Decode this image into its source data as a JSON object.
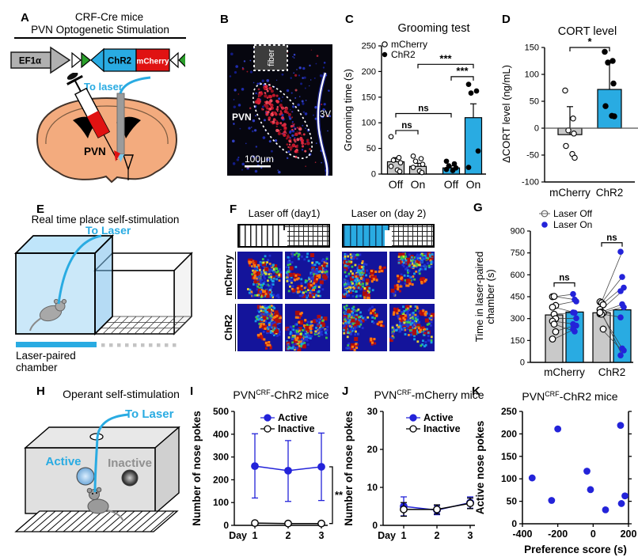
{
  "colors": {
    "cyan": "#29ABE2",
    "blue": "#2323D9",
    "bar_gray": "#C9C9C9",
    "red": "#E01212",
    "green": "#2BA02B",
    "heat_navy": "#14149B"
  },
  "panels": {
    "A": {
      "label": "A",
      "title1": "CRF-Cre mice",
      "title2": "PVN Optogenetic Stimulation",
      "promoter": "EF1α",
      "gene": "ChR2",
      "reporter": "mCherry",
      "to_laser": "To laser",
      "region": "PVN"
    },
    "B": {
      "label": "B",
      "fiber": "fiber",
      "region": "PVN",
      "ventricle": "3V",
      "scalebar": "100μm"
    },
    "C": {
      "label": "C"
    },
    "D": {
      "label": "D"
    },
    "E": {
      "label": "E",
      "title": "Real time place self-stimulation",
      "to_laser": "To  Laser",
      "chamber1": "Laser-paired",
      "chamber2": "chamber"
    },
    "F": {
      "label": "F",
      "col1": "Laser off (day1)",
      "col2": "Laser on (day 2)",
      "row1": "mCherry",
      "row2": "ChR2"
    },
    "G": {
      "label": "G"
    },
    "H": {
      "label": "H",
      "title": "Operant self-stimulation",
      "to_laser": "To  Laser",
      "active": "Active",
      "inactive": "Inactive"
    },
    "I": {
      "label": "I"
    },
    "J": {
      "label": "J"
    },
    "K": {
      "label": "K"
    }
  },
  "chart_data": [
    {
      "panel": "C",
      "type": "bar",
      "title": "Grooming test",
      "ylabel": "Grooming time (s)",
      "ylim": [
        0,
        250
      ],
      "yticks": [
        0,
        50,
        100,
        150,
        200,
        250
      ],
      "xticklabels": [
        "Off",
        "On",
        "Off",
        "On"
      ],
      "legend": [
        {
          "label": "mCherry",
          "marker": "open"
        },
        {
          "label": "ChR2",
          "marker": "filled"
        }
      ],
      "bars": [
        {
          "group": "mCherry",
          "x": "Off",
          "value": 24,
          "err": 8,
          "fill": "gray",
          "marker": "open",
          "points": [
            73,
            32,
            27,
            22,
            15,
            8,
            5
          ]
        },
        {
          "group": "mCherry",
          "x": "On",
          "value": 15,
          "err": 6,
          "fill": "gray",
          "marker": "open",
          "points": [
            35,
            30,
            25,
            19,
            13,
            6,
            3
          ]
        },
        {
          "group": "ChR2",
          "x": "Off",
          "value": 12,
          "err": 4,
          "fill": "cyan",
          "marker": "filled",
          "points": [
            25,
            20,
            16,
            12,
            9,
            7
          ]
        },
        {
          "group": "ChR2",
          "x": "On",
          "value": 110,
          "err": 27,
          "fill": "cyan",
          "marker": "filled",
          "points": [
            175,
            162,
            158,
            45,
            13
          ]
        }
      ],
      "brackets": [
        {
          "a": 0,
          "b": 1,
          "y": 85,
          "label": "ns"
        },
        {
          "a": 0,
          "b": 2,
          "y": 118,
          "label": "ns"
        },
        {
          "a": 2,
          "b": 3,
          "y": 190,
          "label": "***"
        },
        {
          "a": 1,
          "b": 3,
          "y": 214,
          "label": "***"
        }
      ]
    },
    {
      "panel": "D",
      "type": "bar",
      "title": "CORT level",
      "ylabel": "ΔCORT level (ng/mL)",
      "ylim": [
        -100,
        150
      ],
      "yticks": [
        -100,
        -50,
        0,
        50,
        100,
        150
      ],
      "xticklabels": [
        "mCherry",
        "ChR2"
      ],
      "bars": [
        {
          "group": "mCherry",
          "value": -12,
          "err_top": 40,
          "fill": "gray",
          "marker": "open",
          "points": [
            70,
            18,
            -4,
            -10,
            -33,
            -48,
            -55
          ]
        },
        {
          "group": "ChR2",
          "value": 72,
          "err_top": 125,
          "fill": "cyan",
          "marker": "filled",
          "points": [
            142,
            125,
            122,
            83,
            41,
            23,
            22
          ]
        }
      ],
      "brackets": [
        {
          "a": 0,
          "b": 1,
          "y": 150,
          "label": "*"
        }
      ]
    },
    {
      "panel": "G",
      "type": "paired-bar",
      "ylabel_line1": "Time in laser-paired",
      "ylabel_line2": "chamber (s)",
      "ylim": [
        0,
        900
      ],
      "yticks": [
        0,
        150,
        300,
        450,
        600,
        750,
        900
      ],
      "legend": [
        {
          "label": "Laser Off",
          "marker": "open"
        },
        {
          "label": "Laser On",
          "marker": "filled-blue"
        }
      ],
      "groups": [
        {
          "label": "mCherry",
          "off_mean": 325,
          "on_mean": 345,
          "pairs": [
            [
              450,
              468
            ],
            [
              452,
              430
            ],
            [
              390,
              418
            ],
            [
              378,
              342
            ],
            [
              330,
              340
            ],
            [
              300,
              302
            ],
            [
              282,
              262
            ],
            [
              262,
              212
            ],
            [
              210,
              252
            ],
            [
              160,
              228
            ]
          ]
        },
        {
          "label": "ChR2",
          "off_mean": 340,
          "on_mean": 360,
          "pairs": [
            [
              415,
              758
            ],
            [
              408,
              585
            ],
            [
              395,
              512
            ],
            [
              362,
              488
            ],
            [
              345,
              398
            ],
            [
              338,
              378
            ],
            [
              332,
              308
            ],
            [
              330,
              95
            ],
            [
              228,
              82
            ],
            [
              342,
              48
            ]
          ]
        }
      ],
      "brackets": [
        {
          "group": 0,
          "y": 545,
          "label": "ns"
        },
        {
          "group": 1,
          "y": 820,
          "label": "ns"
        }
      ]
    },
    {
      "panel": "I",
      "type": "line",
      "title": {
        "pre": "PVN",
        "sup": "CRF",
        "post": "-ChR2 mice"
      },
      "ylabel": "Number of nose pokes",
      "xlabel": "Day",
      "x": [
        1,
        2,
        3
      ],
      "ylim": [
        0,
        500
      ],
      "yticks": [
        0,
        100,
        200,
        300,
        400,
        500
      ],
      "series": [
        {
          "name": "Active",
          "marker": "filled-blue",
          "values": [
            260,
            240,
            257
          ],
          "err_lo": [
            140,
            135,
            148
          ],
          "err_hi": [
            142,
            132,
            148
          ]
        },
        {
          "name": "Inactive",
          "marker": "open",
          "values": [
            10,
            8,
            8
          ],
          "err_lo": [
            6,
            5,
            5
          ],
          "err_hi": [
            6,
            5,
            5
          ]
        }
      ],
      "bracket_label": "**"
    },
    {
      "panel": "J",
      "type": "line",
      "title": {
        "pre": "PVN",
        "sup": "CRF",
        "post": "-mCherry mice"
      },
      "ylabel": "Number of nose pokes",
      "xlabel": "Day",
      "x": [
        1,
        2,
        3
      ],
      "ylim": [
        0,
        30
      ],
      "yticks": [
        0,
        10,
        20,
        30
      ],
      "series": [
        {
          "name": "Active",
          "marker": "filled-blue",
          "values": [
            5,
            4,
            6
          ],
          "err_lo": [
            2.5,
            1.2,
            1.5
          ],
          "err_hi": [
            2.5,
            1.2,
            1.5
          ]
        },
        {
          "name": "Inactive",
          "marker": "open",
          "values": [
            4.2,
            4.2,
            5.8
          ],
          "err_lo": [
            1.8,
            1.2,
            1.4
          ],
          "err_hi": [
            1.8,
            1.2,
            1.4
          ]
        }
      ]
    },
    {
      "panel": "K",
      "type": "scatter",
      "title": {
        "pre": "PVN",
        "sup": "CRF",
        "post": "-ChR2 mice"
      },
      "xlabel": "Preference score (s)",
      "ylabel": "Active nose pokes",
      "xlim": [
        -400,
        200
      ],
      "xticks": [
        -400,
        -200,
        0,
        200
      ],
      "ylim": [
        0,
        250
      ],
      "yticks": [
        0,
        50,
        100,
        150,
        200,
        250
      ],
      "points": [
        [
          -345,
          102
        ],
        [
          -235,
          52
        ],
        [
          -200,
          211
        ],
        [
          -35,
          117
        ],
        [
          -15,
          76
        ],
        [
          70,
          31
        ],
        [
          155,
          219
        ],
        [
          160,
          45
        ],
        [
          180,
          62
        ]
      ]
    }
  ]
}
